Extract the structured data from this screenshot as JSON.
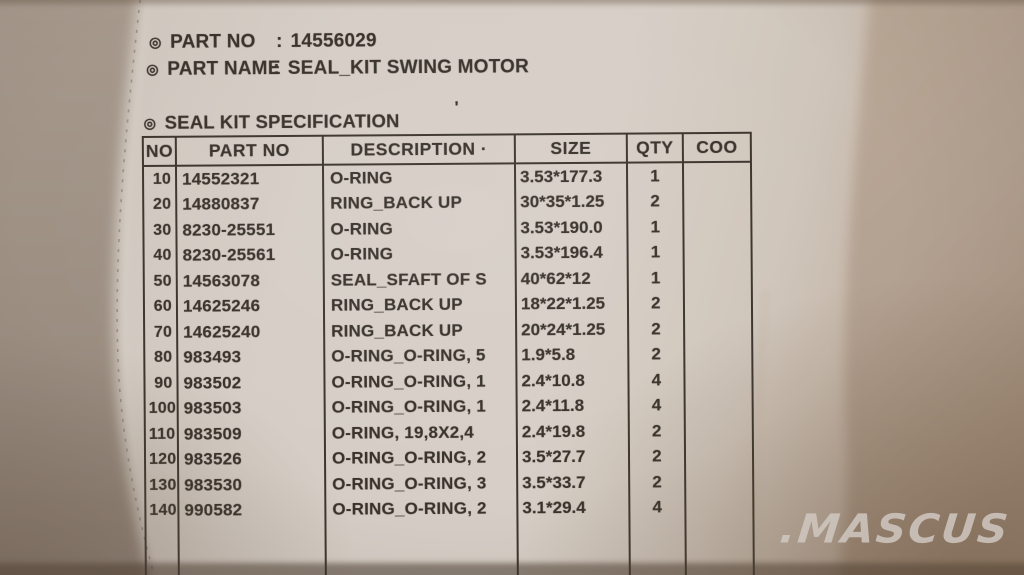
{
  "photo": {
    "watermark_text": ".MASCUS",
    "stray_mark": "'"
  },
  "label": {
    "bullet": "◎",
    "part_no": {
      "label": "PART NO",
      "colon": ":",
      "value": "14556029"
    },
    "part_name": {
      "label": "PART NAME",
      "colon": ":",
      "value": "SEAL_KIT SWING MOTOR"
    },
    "section_title": "SEAL KIT SPECIFICATION"
  },
  "table": {
    "headers": [
      "NO",
      "PART NO",
      "DESCRIPTION ·",
      "SIZE",
      "QTY",
      "COO"
    ],
    "col_keys": [
      "no",
      "part_no",
      "description",
      "size",
      "qty",
      "coo"
    ],
    "rows": [
      {
        "no": "10",
        "part_no": "14552321",
        "description": "O-RING",
        "size": "3.53*177.3",
        "qty": "1",
        "coo": ""
      },
      {
        "no": "20",
        "part_no": "14880837",
        "description": "RING_BACK UP",
        "size": "30*35*1.25",
        "qty": "2",
        "coo": ""
      },
      {
        "no": "30",
        "part_no": "8230-25551",
        "description": "O-RING",
        "size": "3.53*190.0",
        "qty": "1",
        "coo": ""
      },
      {
        "no": "40",
        "part_no": "8230-25561",
        "description": "O-RING",
        "size": "3.53*196.4",
        "qty": "1",
        "coo": ""
      },
      {
        "no": "50",
        "part_no": "14563078",
        "description": "SEAL_SFAFT OF S",
        "size": "40*62*12",
        "qty": "1",
        "coo": ""
      },
      {
        "no": "60",
        "part_no": "14625246",
        "description": "RING_BACK UP",
        "size": "18*22*1.25",
        "qty": "2",
        "coo": ""
      },
      {
        "no": "70",
        "part_no": "14625240",
        "description": "RING_BACK UP",
        "size": "20*24*1.25",
        "qty": "2",
        "coo": ""
      },
      {
        "no": "80",
        "part_no": "983493",
        "description": "O-RING_O-RING, 5",
        "size": "1.9*5.8",
        "qty": "2",
        "coo": ""
      },
      {
        "no": "90",
        "part_no": "983502",
        "description": "O-RING_O-RING, 1",
        "size": "2.4*10.8",
        "qty": "4",
        "coo": ""
      },
      {
        "no": "100",
        "part_no": "983503",
        "description": "O-RING_O-RING, 1",
        "size": "2.4*11.8",
        "qty": "4",
        "coo": ""
      },
      {
        "no": "110",
        "part_no": "983509",
        "description": "O-RING, 19,8X2,4",
        "size": "2.4*19.8",
        "qty": "2",
        "coo": ""
      },
      {
        "no": "120",
        "part_no": "983526",
        "description": "O-RING_O-RING, 2",
        "size": "3.5*27.7",
        "qty": "2",
        "coo": ""
      },
      {
        "no": "130",
        "part_no": "983530",
        "description": "O-RING_O-RING, 3",
        "size": "3.5*33.7",
        "qty": "2",
        "coo": ""
      },
      {
        "no": "140",
        "part_no": "990582",
        "description": "O-RING_O-RING, 2",
        "size": "3.1*29.4",
        "qty": "4",
        "coo": ""
      }
    ]
  },
  "colors": {
    "bag_face": "#d6cec6",
    "background_left": "#a0938a",
    "fold_right": "#b2a090",
    "print_ink": "#38322b",
    "watermark": "#d0c8c1"
  }
}
